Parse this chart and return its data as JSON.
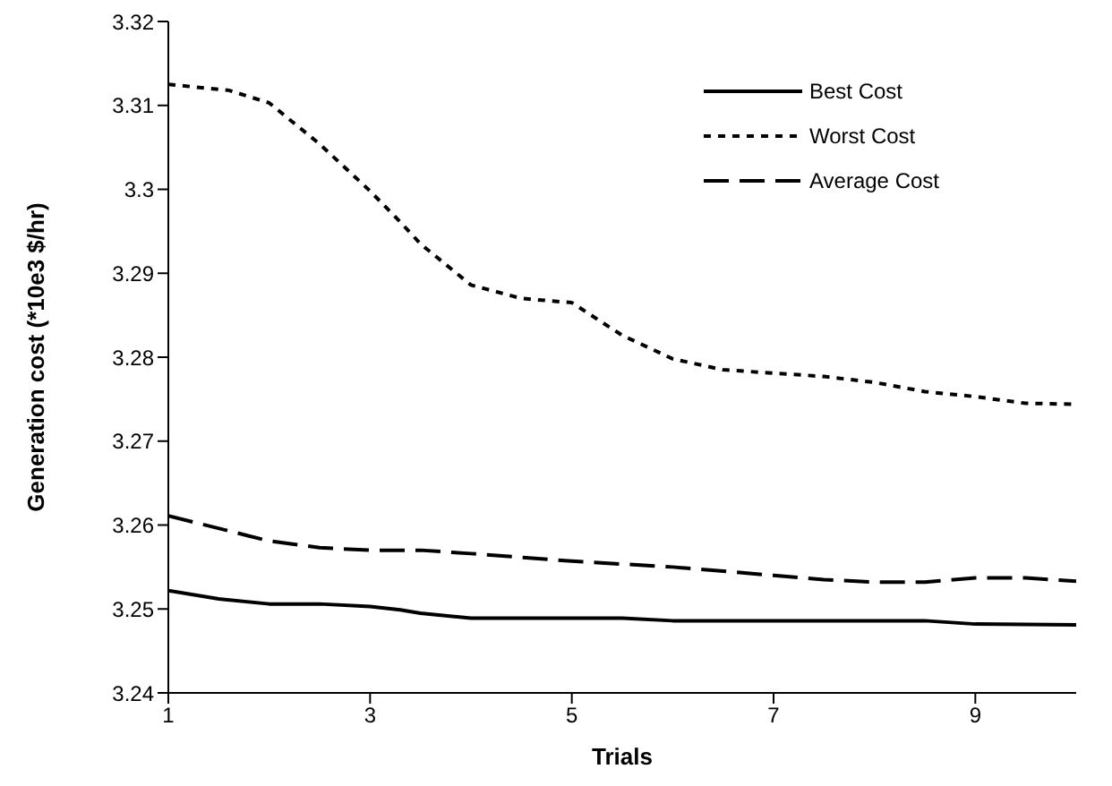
{
  "chart_data": {
    "type": "line",
    "xlabel": "Trials",
    "ylabel": "Generation cost (*10e3 $/hr)",
    "xlim": [
      1,
      10
    ],
    "xticks": [
      1,
      3,
      5,
      7,
      9
    ],
    "ylim": [
      3.24,
      3.32
    ],
    "yticks": [
      3.24,
      3.25,
      3.26,
      3.27,
      3.28,
      3.29,
      3.3,
      3.31,
      3.32
    ],
    "grid": false,
    "legend": "top right",
    "marker": "none",
    "series": [
      {
        "name": "Best Cost",
        "color": "#000000",
        "line_style": "solid",
        "x": [
          1,
          1.5,
          2,
          2.5,
          3,
          3.3,
          3.5,
          4,
          5,
          5.5,
          6,
          7,
          8,
          8.5,
          9,
          10
        ],
        "values": [
          3.2522,
          3.2512,
          3.2506,
          3.2506,
          3.2503,
          3.2499,
          3.2495,
          3.2489,
          3.2489,
          3.2489,
          3.2486,
          3.2486,
          3.2486,
          3.2486,
          3.2482,
          3.2481
        ]
      },
      {
        "name": "Worst Cost",
        "color": "#000000",
        "line_style": "dotted",
        "x": [
          1,
          1.6,
          2,
          2.5,
          3,
          3.3,
          3.5,
          4,
          4.5,
          5,
          5.5,
          6,
          6.5,
          7,
          7.5,
          8,
          8.5,
          9,
          9.5,
          10
        ],
        "values": [
          3.3125,
          3.3118,
          3.3103,
          3.3054,
          3.2998,
          3.2961,
          3.2935,
          3.2886,
          3.287,
          3.2865,
          3.2826,
          3.2798,
          3.2785,
          3.2781,
          3.2777,
          3.277,
          3.2759,
          3.2753,
          3.2745,
          3.2744
        ]
      },
      {
        "name": "Average Cost",
        "color": "#000000",
        "line_style": "dashed",
        "x": [
          1,
          1.8,
          2,
          2.5,
          3,
          3.5,
          4,
          5,
          6,
          7,
          7.5,
          8,
          8.5,
          9,
          9.5,
          10
        ],
        "values": [
          3.2611,
          3.2587,
          3.2581,
          3.2573,
          3.257,
          3.257,
          3.2566,
          3.2557,
          3.255,
          3.254,
          3.2535,
          3.2532,
          3.2532,
          3.2537,
          3.2537,
          3.2533
        ]
      }
    ]
  }
}
